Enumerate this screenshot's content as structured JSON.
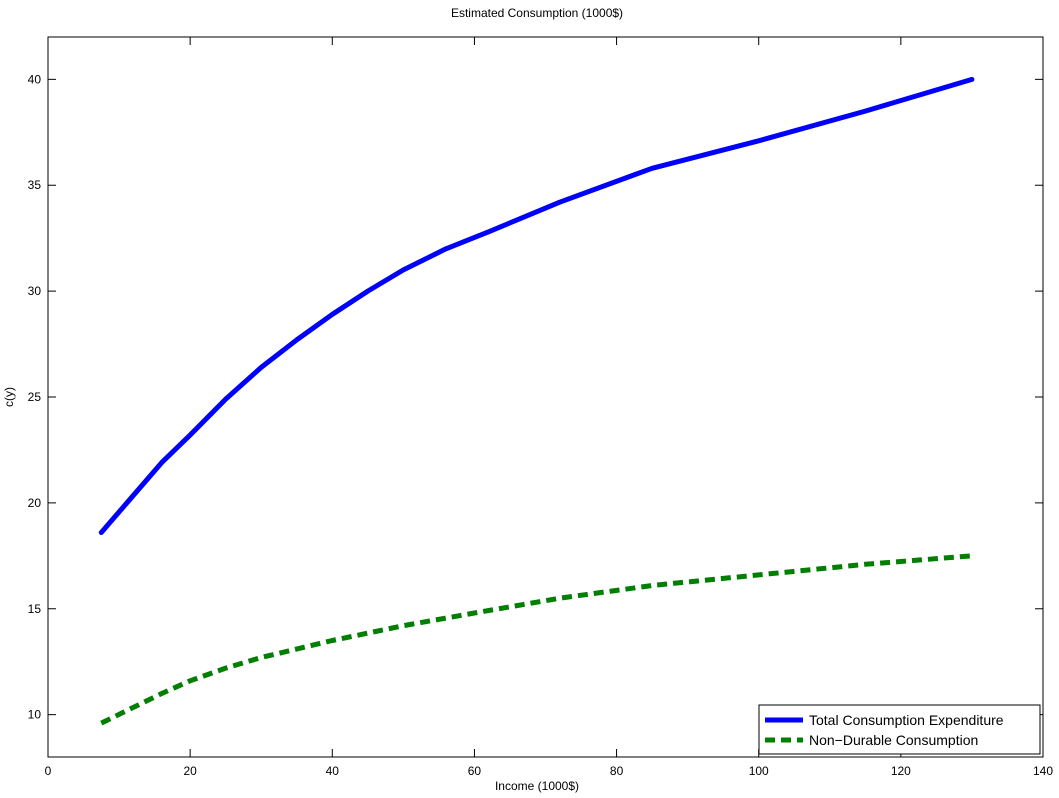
{
  "chart_data": {
    "type": "line",
    "title": "Estimated Consumption (1000$)",
    "xlabel": "Income (1000$)",
    "ylabel": "c(y)",
    "xlim": [
      0,
      140
    ],
    "ylim": [
      8,
      42
    ],
    "xticks": [
      0,
      20,
      40,
      60,
      80,
      100,
      120,
      140
    ],
    "yticks": [
      10,
      15,
      20,
      25,
      30,
      35,
      40
    ],
    "grid": false,
    "legend_position": "bottom-right",
    "series": [
      {
        "name": "Total Consumption Expenditure",
        "color": "#0000ff",
        "style": "solid",
        "x": [
          7.5,
          16,
          20,
          25,
          30,
          35,
          40,
          45,
          50,
          56,
          62,
          72,
          85,
          100,
          115,
          130
        ],
        "y": [
          18.6,
          21.9,
          23.2,
          24.9,
          26.4,
          27.7,
          28.9,
          30.0,
          31.0,
          32.0,
          32.8,
          34.2,
          35.8,
          37.1,
          38.5,
          40.0
        ]
      },
      {
        "name": "Non−Durable Consumption",
        "color": "#007f00",
        "style": "dashed",
        "x": [
          7.5,
          16,
          20,
          25,
          30,
          40,
          50,
          60,
          72,
          85,
          100,
          115,
          130
        ],
        "y": [
          9.6,
          11.0,
          11.6,
          12.2,
          12.7,
          13.5,
          14.2,
          14.8,
          15.5,
          16.1,
          16.6,
          17.1,
          17.5
        ]
      }
    ]
  }
}
